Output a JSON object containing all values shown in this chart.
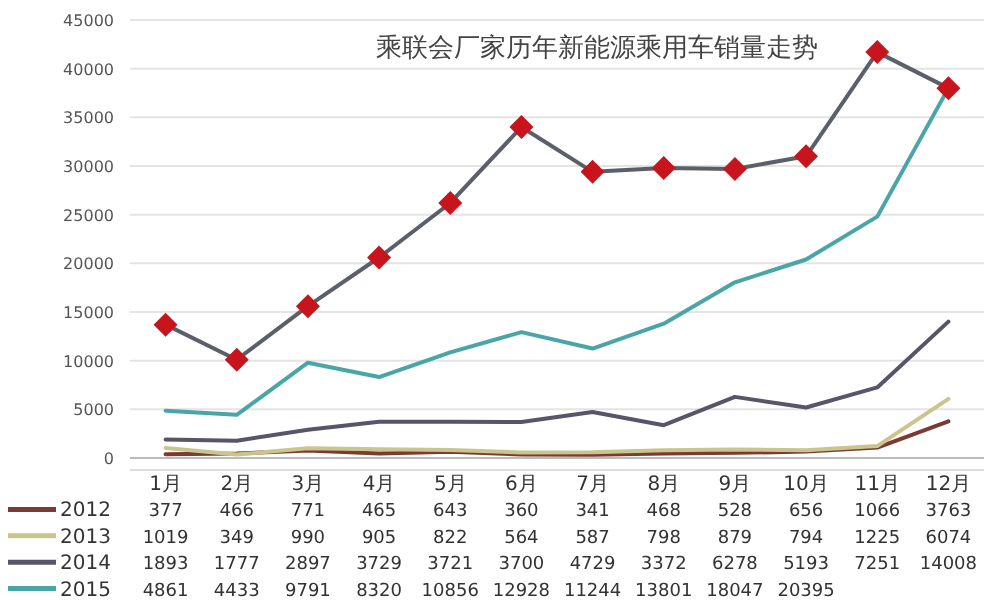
{
  "chart_data": {
    "type": "line",
    "title": "乘联会厂家历年新能源乘用车销量走势",
    "categories": [
      "1月",
      "2月",
      "3月",
      "4月",
      "5月",
      "6月",
      "7月",
      "8月",
      "9月",
      "10月",
      "11月",
      "12月"
    ],
    "ylim": [
      0,
      45000
    ],
    "yticks": [
      0,
      5000,
      10000,
      15000,
      20000,
      25000,
      30000,
      35000,
      40000,
      45000
    ],
    "grid": "y",
    "legend": "bottom",
    "series": [
      {
        "name": "2012",
        "color": "#7b3a33",
        "values": [
          377,
          466,
          771,
          465,
          643,
          360,
          341,
          468,
          528,
          656,
          1066,
          3763
        ],
        "value_labels": [
          "377",
          "466",
          "771",
          "465",
          "643",
          "360",
          "341",
          "468",
          "528",
          "656",
          "1066",
          "3763"
        ]
      },
      {
        "name": "2013",
        "color": "#c9c58c",
        "values": [
          1019,
          349,
          990,
          905,
          822,
          564,
          587,
          798,
          879,
          794,
          1225,
          6074
        ],
        "value_labels": [
          "1019",
          "349",
          "990",
          "905",
          "822",
          "564",
          "587",
          "798",
          "879",
          "794",
          "1225",
          "6074"
        ]
      },
      {
        "name": "2014",
        "color": "#5a5468",
        "values": [
          1893,
          1777,
          2897,
          3729,
          3721,
          3700,
          4729,
          3372,
          6278,
          5193,
          7251,
          14008
        ],
        "value_labels": [
          "1893",
          "1777",
          "2897",
          "3729",
          "3721",
          "3700",
          "4729",
          "3372",
          "6278",
          "5193",
          "7251",
          "14008"
        ]
      },
      {
        "name": "2015",
        "color": "#4aa6a6",
        "values": [
          4861,
          4433,
          9791,
          8320,
          10856,
          12928,
          11244,
          13801,
          18047,
          20395,
          24800,
          38000
        ],
        "value_labels": [
          "4861",
          "4433",
          "9791",
          "8320",
          "10856",
          "12928",
          "11244",
          "13801",
          "18047",
          "20395",
          null,
          null
        ]
      },
      {
        "color": "#5b6068",
        "marker": "diamond",
        "colors": [
          "#c8141c",
          "#c8141c",
          "#c8141c",
          "#c8141c",
          "#c8141c",
          "#c8141c",
          "#c8141c",
          "#c8141c",
          "#c8141c",
          "#c8141c",
          "#c8141c",
          "#c8141c"
        ],
        "values": [
          13700,
          10100,
          15600,
          20600,
          26200,
          34000,
          29400,
          29800,
          29700,
          31000,
          41700,
          38000
        ]
      }
    ]
  }
}
